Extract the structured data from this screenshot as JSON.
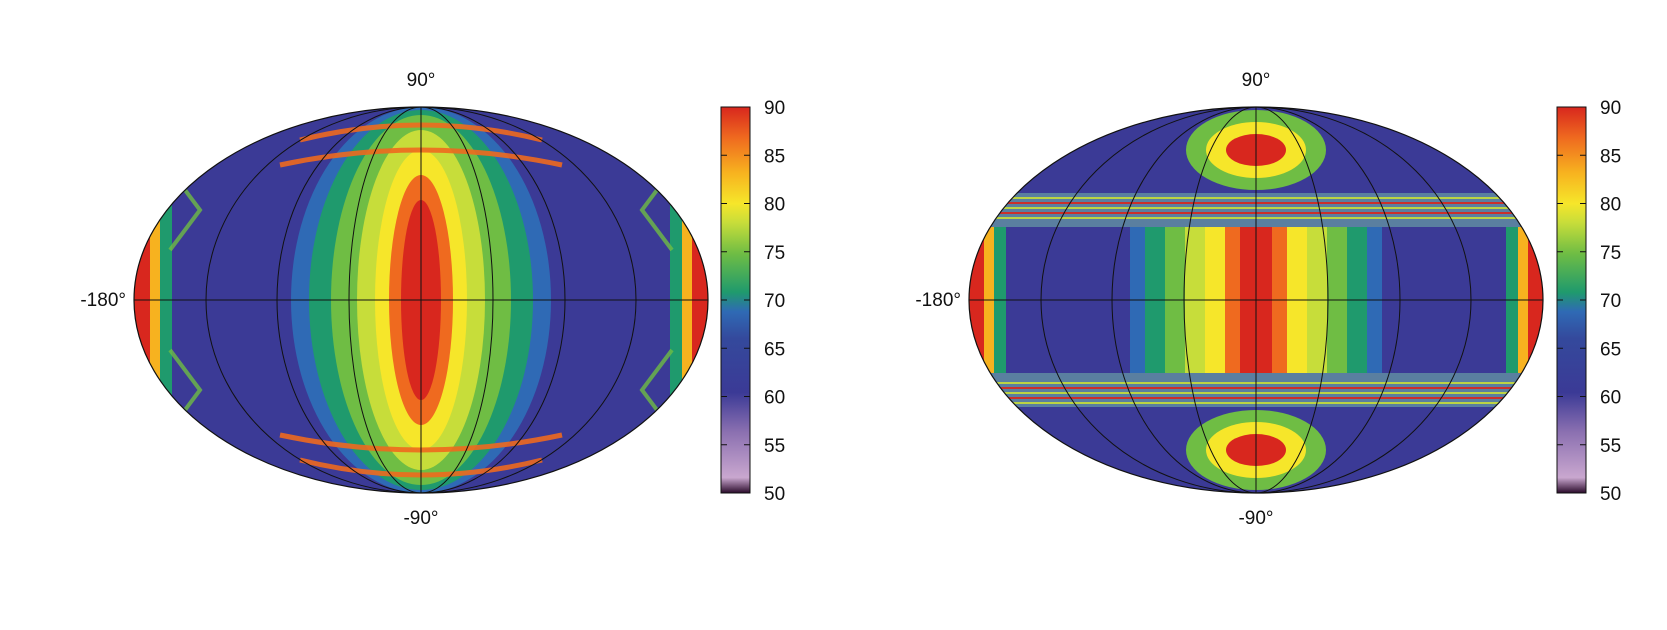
{
  "chart_data": [
    {
      "type": "heatmap",
      "projection": "hammer-aitoff",
      "pattern": "left",
      "axis_labels": {
        "top": "90°",
        "bottom": "-90°",
        "left": "-180°"
      },
      "colorbar": {
        "min": 50,
        "max": 90,
        "ticks": [
          "90",
          "85",
          "80",
          "75",
          "70",
          "65",
          "60",
          "55",
          "50"
        ]
      },
      "grid": true
    },
    {
      "type": "heatmap",
      "projection": "hammer-aitoff",
      "pattern": "right",
      "axis_labels": {
        "top": "90°",
        "bottom": "-90°",
        "left": "-180°"
      },
      "colorbar": {
        "min": 50,
        "max": 90,
        "ticks": [
          "90",
          "85",
          "80",
          "75",
          "70",
          "65",
          "60",
          "55",
          "50"
        ]
      },
      "grid": true
    }
  ],
  "colormap": [
    "#2a0a2a",
    "#c9a7cf",
    "#8a6fb0",
    "#3b3a96",
    "#34499c",
    "#2f6ab5",
    "#1f9a6d",
    "#6fbd44",
    "#c7dd3a",
    "#f6e62a",
    "#f7b21f",
    "#ef6a1f",
    "#d8271e"
  ]
}
